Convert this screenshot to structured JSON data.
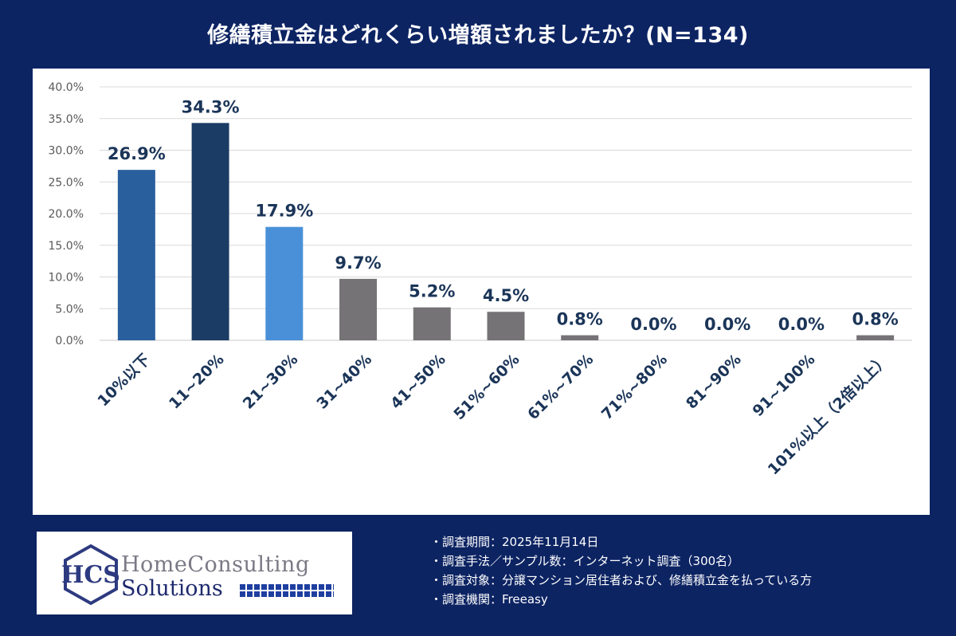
{
  "title": "修繕積立金はどれくらい増額されましたか？(N=134)",
  "chart_data": {
    "type": "bar",
    "categories": [
      "10%以下",
      "11~20%",
      "21~30%",
      "31~40%",
      "41~50%",
      "51%~60%",
      "61%~70%",
      "71%~80%",
      "81~90%",
      "91~100%",
      "101%以上（2倍以上）"
    ],
    "values": [
      26.9,
      34.3,
      17.9,
      9.7,
      5.2,
      4.5,
      0.8,
      0.0,
      0.0,
      0.0,
      0.8
    ],
    "value_labels": [
      "26.9%",
      "34.3%",
      "17.9%",
      "9.7%",
      "5.2%",
      "4.5%",
      "0.8%",
      "0.0%",
      "0.0%",
      "0.0%",
      "0.8%"
    ],
    "bar_colors": [
      "#2a5f9e",
      "#1b3c64",
      "#4a90d9",
      "#757375",
      "#757375",
      "#757375",
      "#757375",
      "#757375",
      "#757375",
      "#757375",
      "#757375"
    ],
    "yticks": [
      "0.0%",
      "5.0%",
      "10.0%",
      "15.0%",
      "20.0%",
      "25.0%",
      "30.0%",
      "35.0%",
      "40.0%"
    ],
    "ylim": [
      0,
      40
    ],
    "grid": true
  },
  "logo": {
    "line1": "HomeConsulting",
    "line2": "Solutions",
    "mark": "HCS"
  },
  "notes": [
    "・調査期間：2025年11月14日",
    "・調査手法／サンプル数：インターネット調査（300名）",
    "・調査対象：分譲マンション居住者および、修繕積立金を払っている方",
    "・調査機関：Freeasy"
  ],
  "colors": {
    "background": "#0d2463",
    "panel": "#ffffff",
    "label_text": "#1b3558"
  }
}
